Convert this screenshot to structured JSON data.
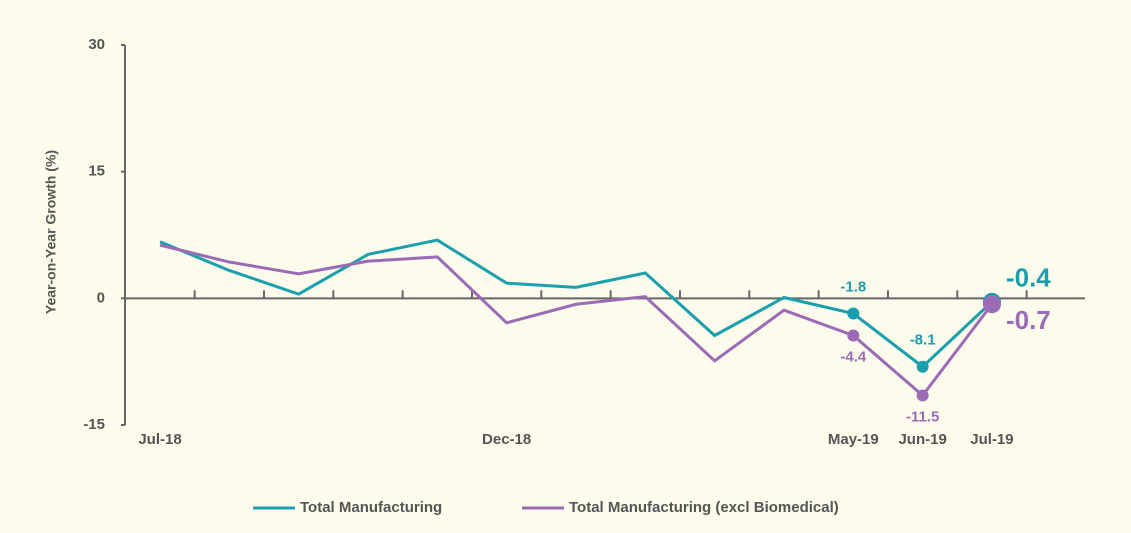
{
  "chart_data": {
    "type": "line",
    "y_axis_label": "Year-on-Year Growth (%)",
    "categories": [
      "Jul-18",
      null,
      null,
      null,
      null,
      "Dec-18",
      null,
      null,
      null,
      null,
      "May-19",
      "Jun-19",
      "Jul-19"
    ],
    "series": [
      {
        "name": "Total Manufacturing",
        "color": "#1a9fae",
        "values": [
          6.7,
          3.3,
          0.5,
          5.2,
          6.9,
          1.8,
          1.3,
          3.0,
          -4.4,
          0.1,
          -1.8,
          -8.1,
          -0.4
        ],
        "value_labels": [
          null,
          null,
          null,
          null,
          null,
          null,
          null,
          null,
          null,
          null,
          "-1.8",
          "-8.1",
          "-0.4"
        ]
      },
      {
        "name": "Total Manufacturing (excl Biomedical)",
        "color": "#9b6bb5",
        "values": [
          6.3,
          4.3,
          2.9,
          4.4,
          4.9,
          -2.9,
          -0.7,
          0.2,
          -7.4,
          -1.4,
          -4.4,
          -11.5,
          -0.7
        ],
        "value_labels": [
          null,
          null,
          null,
          null,
          null,
          null,
          null,
          null,
          null,
          null,
          "-4.4",
          "-11.5",
          "-0.7"
        ]
      }
    ],
    "ylim": [
      -15,
      30
    ],
    "yticks": [
      -15,
      0,
      15,
      30
    ],
    "legend": "bottom"
  }
}
